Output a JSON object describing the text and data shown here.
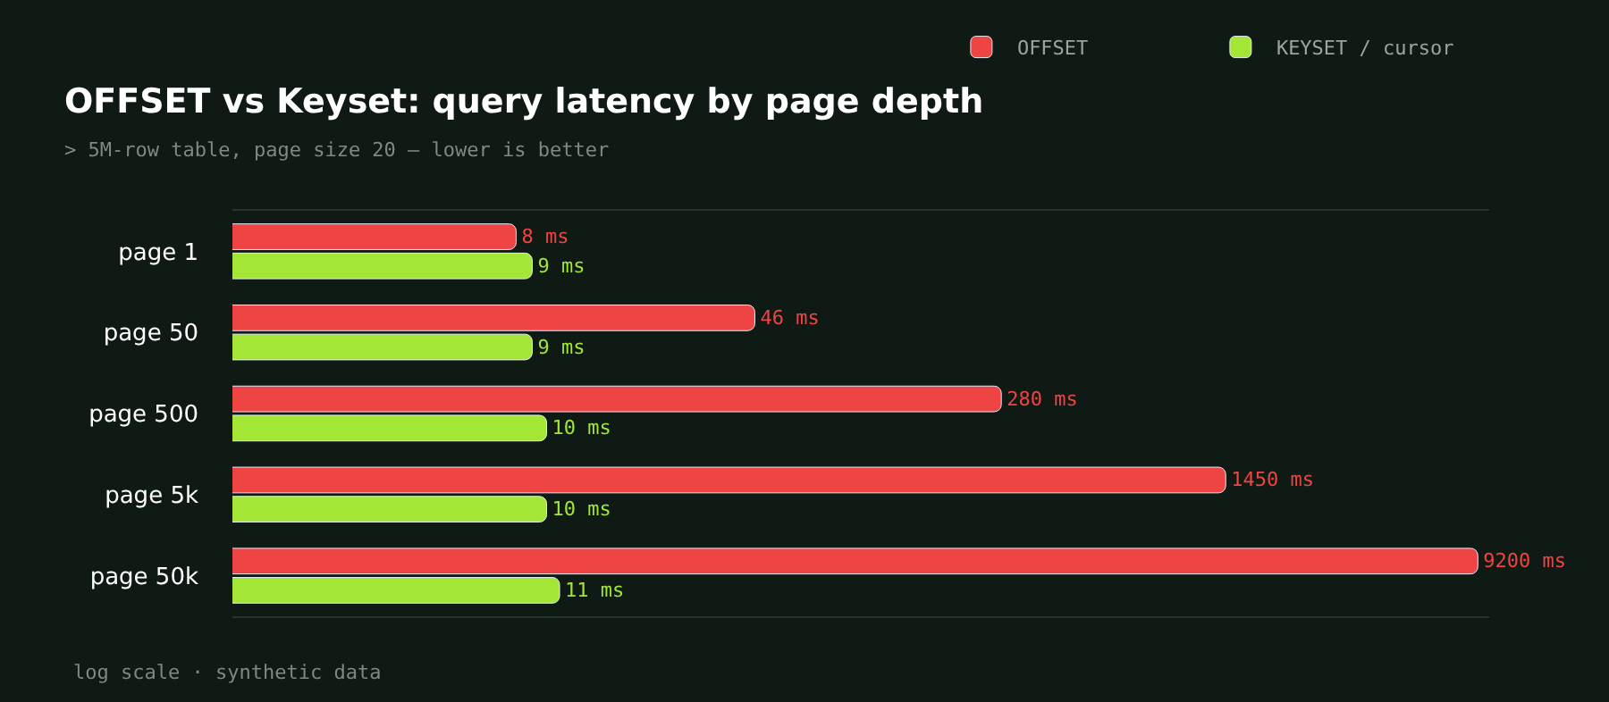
{
  "chart_data": {
    "type": "bar",
    "orientation": "horizontal",
    "title": "OFFSET vs Keyset: query latency by page depth",
    "subtitle": "> 5M-row table, page size 20 — lower is better",
    "categories": [
      "page 1",
      "page 50",
      "page 500",
      "page 5k",
      "page 50k"
    ],
    "series": [
      {
        "name": "OFFSET",
        "color": "#ef4444",
        "values": [
          8,
          46,
          280,
          1450,
          9200
        ],
        "value_labels": [
          "8 ms",
          "46 ms",
          "280 ms",
          "1450 ms",
          "9200 ms"
        ]
      },
      {
        "name": "KEYSET / cursor",
        "color": "#a3e635",
        "values": [
          9,
          9,
          10,
          10,
          11
        ],
        "value_labels": [
          "9 ms",
          "9 ms",
          "10 ms",
          "10 ms",
          "11 ms"
        ]
      }
    ],
    "log": "x",
    "xlim": [
      1,
      10000
    ],
    "tick_labels": "y",
    "grid": false,
    "legend": "top right",
    "annotations": [
      "log scale · synthetic data"
    ]
  }
}
